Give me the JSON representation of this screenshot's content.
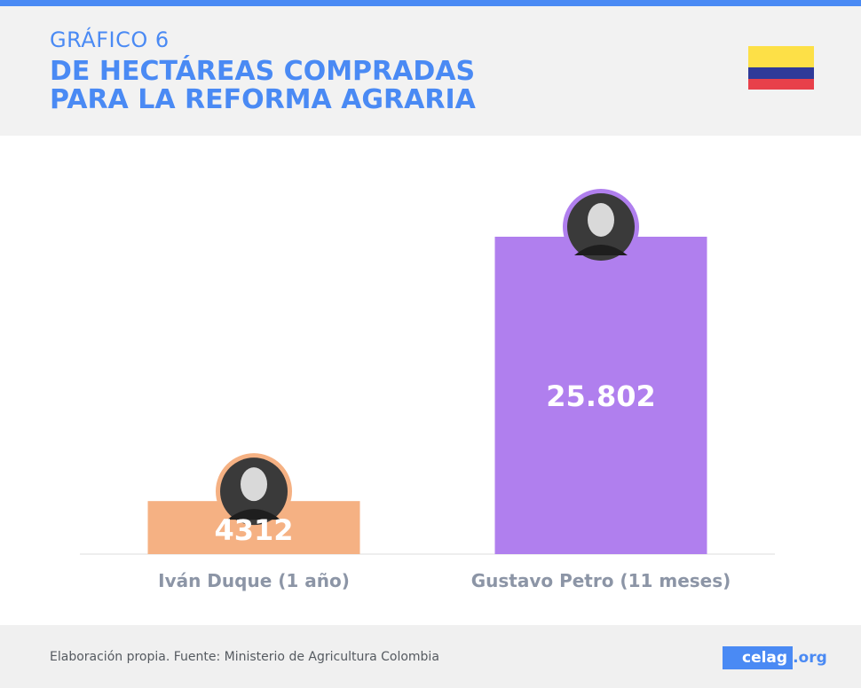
{
  "header": {
    "chart_label": "GRÁFICO 6",
    "title_lines": [
      "DE HECTÁREAS COMPRADAS",
      "PARA LA REFORMA AGRARIA"
    ],
    "flag_colors": [
      "#fde047",
      "#2f3a99",
      "#e8404a"
    ]
  },
  "chart_data": {
    "type": "bar",
    "categories": [
      "Iván Duque (1 año)",
      "Gustavo Petro (11 meses)"
    ],
    "values": [
      4312,
      25802
    ],
    "value_labels": [
      "4312",
      "25.802"
    ],
    "colors": [
      "#f5b183",
      "#b07fee"
    ],
    "title": "DE HECTÁREAS COMPRADAS PARA LA REFORMA AGRARIA",
    "xlabel": "",
    "ylabel": "",
    "grid": false
  },
  "footer": {
    "source": "Elaboración propia. Fuente: Ministerio de Agricultura Colombia",
    "logo_main": "celag",
    "logo_suffix": ".org"
  }
}
